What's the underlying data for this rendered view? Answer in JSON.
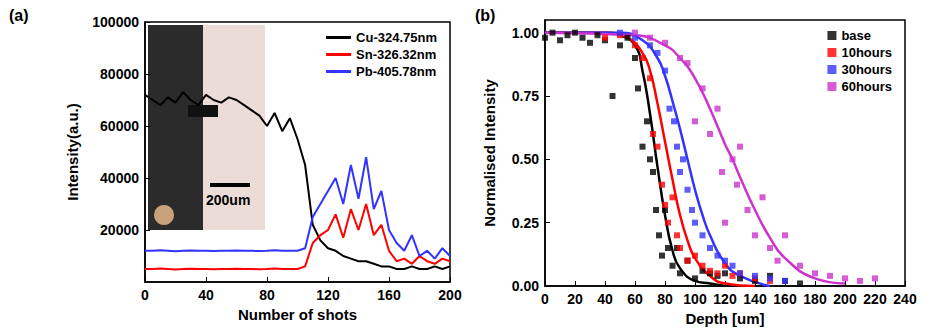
{
  "chart_data": [
    {
      "type": "line",
      "title": "(a)",
      "x_label": "Number of shots",
      "y_label": "Intensity(a.u.)",
      "xlim": [
        0,
        200
      ],
      "xticks": [
        0,
        40,
        80,
        120,
        160,
        200
      ],
      "ylim": [
        0,
        100000
      ],
      "yticks": [
        20000,
        40000,
        60000,
        80000,
        100000
      ],
      "grid": false,
      "legend": "upper right",
      "annotations": [
        "200um"
      ],
      "x": [
        0,
        5,
        10,
        15,
        20,
        25,
        30,
        35,
        40,
        45,
        50,
        55,
        60,
        65,
        70,
        75,
        80,
        85,
        90,
        95,
        100,
        105,
        110,
        115,
        120,
        125,
        130,
        135,
        140,
        145,
        150,
        155,
        160,
        165,
        170,
        175,
        180,
        185,
        190,
        195,
        200
      ],
      "series": [
        {
          "name": "Cu-324.75nm",
          "color": "#000000",
          "values": [
            72000,
            70000,
            68000,
            71000,
            69000,
            73000,
            70000,
            68000,
            72000,
            70000,
            69000,
            71000,
            70000,
            68000,
            66000,
            64000,
            60000,
            65000,
            58000,
            63000,
            55000,
            45000,
            22000,
            16000,
            13000,
            12000,
            10000,
            9000,
            8000,
            8000,
            7000,
            6000,
            6000,
            5000,
            5000,
            6000,
            5000,
            5000,
            6000,
            5000,
            6000
          ]
        },
        {
          "name": "Sn-326.32nm",
          "color": "#ff0000",
          "values": [
            5000,
            5000,
            5200,
            5000,
            4800,
            5000,
            5100,
            5000,
            5000,
            4900,
            5000,
            5000,
            5100,
            5000,
            5000,
            4900,
            5000,
            5200,
            5000,
            5000,
            5000,
            6000,
            15000,
            18000,
            20000,
            26000,
            17000,
            28000,
            20000,
            30000,
            18000,
            22000,
            12000,
            8000,
            9000,
            7000,
            10000,
            8000,
            7000,
            9000,
            8000
          ]
        },
        {
          "name": "Pb-405.78nm",
          "color": "#3333ff",
          "values": [
            12000,
            12000,
            12200,
            12000,
            11800,
            12000,
            12100,
            12000,
            12000,
            11900,
            12000,
            12000,
            12100,
            12000,
            12000,
            11900,
            12000,
            12200,
            12000,
            12000,
            12000,
            13000,
            25000,
            30000,
            35000,
            40000,
            30000,
            45000,
            32000,
            48000,
            28000,
            35000,
            20000,
            15000,
            12000,
            18000,
            10000,
            12000,
            9000,
            13000,
            10000
          ]
        }
      ]
    },
    {
      "type": "scatter",
      "title": "(b)",
      "x_label": "Depth [um]",
      "y_label": "Normalised Intensity",
      "xlim": [
        0,
        240
      ],
      "xticks": [
        0,
        20,
        40,
        60,
        80,
        100,
        120,
        140,
        160,
        180,
        200,
        220,
        240
      ],
      "ylim": [
        0,
        1.05
      ],
      "yticks": [
        {
          "value": 0,
          "label": "0.00"
        },
        {
          "value": 0.25,
          "label": "0.25"
        },
        {
          "value": 0.5,
          "label": "0.50"
        },
        {
          "value": 0.75,
          "label": "0.75"
        },
        {
          "value": 1,
          "label": "1.00"
        }
      ],
      "grid": false,
      "legend": "upper right",
      "series": [
        {
          "name": "base",
          "color": "#000000",
          "marker": "square",
          "points": [
            [
              0,
              0.98
            ],
            [
              5,
              1
            ],
            [
              10,
              0.97
            ],
            [
              15,
              0.99
            ],
            [
              20,
              1
            ],
            [
              25,
              0.98
            ],
            [
              30,
              0.96
            ],
            [
              35,
              0.99
            ],
            [
              40,
              0.97
            ],
            [
              45,
              0.75
            ],
            [
              50,
              0.95
            ],
            [
              55,
              0.98
            ],
            [
              60,
              0.9
            ],
            [
              62,
              0.78
            ],
            [
              65,
              0.55
            ],
            [
              68,
              0.65
            ],
            [
              70,
              0.5
            ],
            [
              72,
              0.45
            ],
            [
              74,
              0.3
            ],
            [
              76,
              0.2
            ],
            [
              78,
              0.12
            ],
            [
              80,
              0.3
            ],
            [
              82,
              0.15
            ],
            [
              85,
              0.08
            ],
            [
              88,
              0.15
            ],
            [
              90,
              0.05
            ],
            [
              95,
              0.1
            ],
            [
              100,
              0.03
            ],
            [
              105,
              0.06
            ],
            [
              110,
              0.05
            ],
            [
              115,
              0.04
            ],
            [
              120,
              0.05
            ],
            [
              130,
              0.03
            ],
            [
              140,
              0.02
            ],
            [
              150,
              0.04
            ],
            [
              160,
              0.02
            ],
            [
              170,
              0.01
            ]
          ],
          "fit": {
            "x": [
              0,
              20,
              40,
              50,
              60,
              65,
              70,
              75,
              80,
              85,
              90,
              100,
              110,
              120
            ],
            "values": [
              1,
              1,
              1,
              0.99,
              0.95,
              0.85,
              0.68,
              0.47,
              0.28,
              0.14,
              0.07,
              0.02,
              0.01,
              0
            ]
          }
        },
        {
          "name": "10hours",
          "color": "#ff0000",
          "marker": "square",
          "points": [
            [
              40,
              0.98
            ],
            [
              50,
              0.99
            ],
            [
              60,
              0.95
            ],
            [
              65,
              0.9
            ],
            [
              70,
              0.82
            ],
            [
              72,
              0.6
            ],
            [
              75,
              0.55
            ],
            [
              78,
              0.4
            ],
            [
              80,
              0.32
            ],
            [
              82,
              0.25
            ],
            [
              85,
              0.35
            ],
            [
              88,
              0.2
            ],
            [
              90,
              0.15
            ],
            [
              95,
              0.1
            ],
            [
              100,
              0.12
            ],
            [
              105,
              0.08
            ],
            [
              110,
              0.06
            ],
            [
              115,
              0.05
            ],
            [
              120,
              0.08
            ],
            [
              125,
              0.04
            ],
            [
              130,
              0.05
            ],
            [
              140,
              0.03
            ],
            [
              150,
              0.02
            ]
          ],
          "fit": {
            "x": [
              0,
              40,
              55,
              65,
              70,
              75,
              80,
              85,
              90,
              95,
              100,
              110,
              120,
              140
            ],
            "values": [
              1,
              1,
              0.98,
              0.92,
              0.85,
              0.72,
              0.57,
              0.42,
              0.28,
              0.18,
              0.11,
              0.04,
              0.01,
              0
            ]
          }
        },
        {
          "name": "30hours",
          "color": "#3333ff",
          "marker": "square",
          "points": [
            [
              50,
              1
            ],
            [
              60,
              0.98
            ],
            [
              70,
              0.95
            ],
            [
              75,
              0.92
            ],
            [
              80,
              0.85
            ],
            [
              83,
              0.7
            ],
            [
              86,
              0.65
            ],
            [
              88,
              0.55
            ],
            [
              90,
              0.45
            ],
            [
              92,
              0.5
            ],
            [
              95,
              0.38
            ],
            [
              98,
              0.3
            ],
            [
              100,
              0.25
            ],
            [
              105,
              0.2
            ],
            [
              110,
              0.15
            ],
            [
              115,
              0.12
            ],
            [
              120,
              0.1
            ],
            [
              125,
              0.08
            ],
            [
              130,
              0.05
            ],
            [
              140,
              0.04
            ],
            [
              150,
              0.03
            ],
            [
              160,
              0.02
            ]
          ],
          "fit": {
            "x": [
              0,
              50,
              65,
              75,
              80,
              85,
              90,
              95,
              100,
              105,
              110,
              120,
              130,
              150
            ],
            "values": [
              1,
              1,
              0.97,
              0.9,
              0.83,
              0.73,
              0.62,
              0.5,
              0.38,
              0.28,
              0.2,
              0.09,
              0.04,
              0
            ]
          }
        },
        {
          "name": "60hours",
          "color": "#cc33cc",
          "marker": "square",
          "points": [
            [
              60,
              1
            ],
            [
              70,
              0.98
            ],
            [
              80,
              0.96
            ],
            [
              90,
              0.9
            ],
            [
              95,
              0.88
            ],
            [
              100,
              0.65
            ],
            [
              105,
              0.78
            ],
            [
              110,
              0.6
            ],
            [
              115,
              0.7
            ],
            [
              118,
              0.45
            ],
            [
              120,
              0.25
            ],
            [
              125,
              0.5
            ],
            [
              128,
              0.4
            ],
            [
              130,
              0.55
            ],
            [
              135,
              0.3
            ],
            [
              140,
              0.2
            ],
            [
              145,
              0.35
            ],
            [
              150,
              0.15
            ],
            [
              155,
              0.1
            ],
            [
              160,
              0.2
            ],
            [
              170,
              0.08
            ],
            [
              180,
              0.05
            ],
            [
              190,
              0.04
            ],
            [
              200,
              0.03
            ],
            [
              210,
              0.02
            ],
            [
              220,
              0.03
            ]
          ],
          "fit": {
            "x": [
              0,
              60,
              80,
              90,
              100,
              110,
              120,
              125,
              130,
              140,
              150,
              160,
              180,
              200
            ],
            "values": [
              1,
              0.99,
              0.95,
              0.9,
              0.82,
              0.7,
              0.56,
              0.5,
              0.43,
              0.3,
              0.19,
              0.11,
              0.03,
              0.01
            ]
          }
        }
      ]
    }
  ]
}
